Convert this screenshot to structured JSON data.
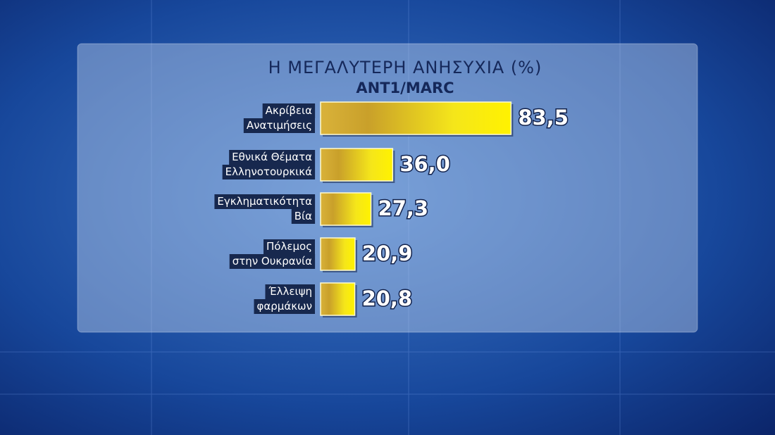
{
  "chart_data": {
    "type": "bar",
    "orientation": "horizontal",
    "title": "Η ΜΕΓΑΛΥΤΕΡΗ ΑΝΗΣΥΧΙΑ (%)",
    "subtitle": "ANT1/MARC",
    "categories": [
      [
        "Ακρίβεια",
        "Ανατιμήσεις"
      ],
      [
        "Εθνικά Θέματα",
        "Ελληνοτουρκικά"
      ],
      [
        "Εγκληματικότητα",
        "Βία"
      ],
      [
        "Πόλεμος",
        "στην Ουκρανία"
      ],
      [
        "Έλλειψη",
        "φαρμάκων"
      ]
    ],
    "values": [
      83.5,
      36.0,
      27.3,
      20.9,
      20.8
    ],
    "value_labels": [
      "83,5",
      "36,0",
      "27,3",
      "20,9",
      "20,8"
    ],
    "color": "#f2e600"
  }
}
